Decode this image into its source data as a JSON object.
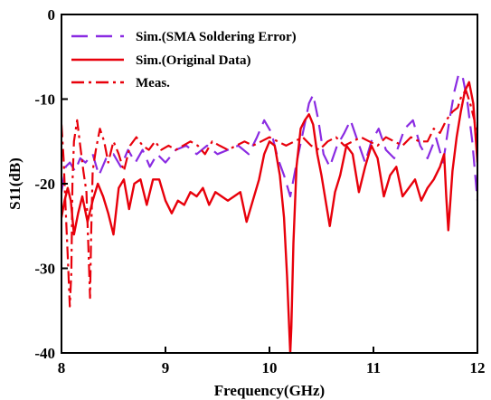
{
  "chart_data": {
    "type": "line",
    "xlabel": "Frequency(GHz)",
    "ylabel": "S11(dB)",
    "xlim": [
      8,
      12
    ],
    "ylim": [
      -40,
      0
    ],
    "xticks": [
      "8",
      "9",
      "10",
      "11",
      "12"
    ],
    "yticks": [
      "0",
      "-10",
      "-20",
      "-30",
      "-40"
    ],
    "xtick_values": [
      8,
      9,
      10,
      11,
      12
    ],
    "ytick_values": [
      0,
      -10,
      -20,
      -30,
      -40
    ],
    "grid": false,
    "legend_position": "top-left",
    "series": [
      {
        "name": "Sim.(SMA Soldering Error)",
        "color": "#8a2be2",
        "style": "dashed",
        "x": [
          8.0,
          8.04,
          8.08,
          8.13,
          8.18,
          8.23,
          8.3,
          8.36,
          8.43,
          8.5,
          8.57,
          8.64,
          8.71,
          8.78,
          8.85,
          8.92,
          9.0,
          9.1,
          9.2,
          9.3,
          9.4,
          9.5,
          9.6,
          9.7,
          9.8,
          9.88,
          9.95,
          10.02,
          10.08,
          10.14,
          10.2,
          10.27,
          10.33,
          10.38,
          10.42,
          10.47,
          10.52,
          10.58,
          10.65,
          10.72,
          10.78,
          10.85,
          10.92,
          10.98,
          11.05,
          11.12,
          11.2,
          11.3,
          11.38,
          11.45,
          11.52,
          11.6,
          11.67,
          11.73,
          11.78,
          11.82,
          11.86,
          11.9,
          11.95,
          12.0
        ],
        "y": [
          -21.0,
          -18.0,
          -17.5,
          -18.5,
          -17.0,
          -17.5,
          -16.5,
          -19.0,
          -17.0,
          -16.5,
          -18.0,
          -16.0,
          -17.5,
          -16.0,
          -18.0,
          -16.5,
          -17.5,
          -16.0,
          -15.5,
          -16.5,
          -15.5,
          -16.5,
          -16.0,
          -15.5,
          -16.5,
          -14.5,
          -12.5,
          -14.0,
          -17.0,
          -19.0,
          -21.5,
          -17.0,
          -13.5,
          -10.5,
          -9.5,
          -12.5,
          -16.5,
          -18.0,
          -15.5,
          -14.0,
          -12.5,
          -15.0,
          -17.5,
          -15.0,
          -13.5,
          -16.0,
          -17.0,
          -13.5,
          -12.5,
          -15.5,
          -17.0,
          -14.5,
          -17.5,
          -12.5,
          -9.0,
          -7.0,
          -7.5,
          -10.0,
          -15.0,
          -22.0
        ]
      },
      {
        "name": "Sim.(Original Data)",
        "color": "#e8000b",
        "style": "solid",
        "x": [
          8.0,
          8.03,
          8.06,
          8.09,
          8.12,
          8.16,
          8.2,
          8.25,
          8.3,
          8.35,
          8.4,
          8.45,
          8.5,
          8.55,
          8.6,
          8.65,
          8.7,
          8.76,
          8.82,
          8.88,
          8.94,
          9.0,
          9.06,
          9.12,
          9.18,
          9.24,
          9.3,
          9.36,
          9.42,
          9.48,
          9.54,
          9.6,
          9.66,
          9.72,
          9.78,
          9.84,
          9.9,
          9.95,
          10.0,
          10.05,
          10.1,
          10.14,
          10.17,
          10.19,
          10.2,
          10.21,
          10.23,
          10.26,
          10.3,
          10.34,
          10.38,
          10.42,
          10.46,
          10.5,
          10.54,
          10.58,
          10.63,
          10.68,
          10.74,
          10.8,
          10.86,
          10.92,
          10.98,
          11.04,
          11.1,
          11.16,
          11.22,
          11.28,
          11.34,
          11.4,
          11.46,
          11.52,
          11.58,
          11.64,
          11.68,
          11.7,
          11.72,
          11.76,
          11.8,
          11.84,
          11.88,
          11.92,
          11.96,
          12.0
        ],
        "y": [
          -24.0,
          -22.0,
          -20.5,
          -22.0,
          -26.0,
          -23.5,
          -21.5,
          -24.5,
          -22.0,
          -20.0,
          -21.5,
          -23.5,
          -26.0,
          -20.5,
          -19.5,
          -23.0,
          -20.0,
          -19.5,
          -22.5,
          -19.5,
          -19.5,
          -22.0,
          -23.5,
          -22.0,
          -22.5,
          -21.0,
          -21.5,
          -20.5,
          -22.5,
          -21.0,
          -21.5,
          -22.0,
          -21.5,
          -21.0,
          -24.5,
          -22.0,
          -19.5,
          -16.5,
          -15.0,
          -15.5,
          -19.0,
          -24.0,
          -31.0,
          -37.0,
          -40.0,
          -37.0,
          -27.0,
          -18.0,
          -13.5,
          -12.5,
          -11.8,
          -13.0,
          -16.5,
          -19.0,
          -22.0,
          -25.0,
          -21.0,
          -19.0,
          -15.5,
          -16.5,
          -21.0,
          -18.0,
          -15.5,
          -17.0,
          -21.5,
          -19.0,
          -18.0,
          -21.5,
          -20.5,
          -19.5,
          -22.0,
          -20.5,
          -19.5,
          -18.0,
          -16.5,
          -21.5,
          -25.5,
          -18.5,
          -14.5,
          -11.5,
          -9.0,
          -8.0,
          -10.5,
          -17.5
        ]
      },
      {
        "name": "Meas.",
        "color": "#e8000b",
        "style": "dashdot",
        "x": [
          8.0,
          8.02,
          8.04,
          8.06,
          8.08,
          8.095,
          8.105,
          8.12,
          8.15,
          8.18,
          8.21,
          8.24,
          8.26,
          8.275,
          8.285,
          8.3,
          8.33,
          8.37,
          8.41,
          8.45,
          8.5,
          8.55,
          8.6,
          8.66,
          8.72,
          8.78,
          8.84,
          8.9,
          8.96,
          9.03,
          9.1,
          9.17,
          9.24,
          9.31,
          9.38,
          9.45,
          9.52,
          9.6,
          9.68,
          9.76,
          9.84,
          9.92,
          10.0,
          10.08,
          10.16,
          10.24,
          10.32,
          10.4,
          10.48,
          10.56,
          10.64,
          10.72,
          10.8,
          10.88,
          10.96,
          11.04,
          11.12,
          11.2,
          11.28,
          11.36,
          11.44,
          11.52,
          11.58,
          11.64,
          11.7,
          11.76,
          11.81,
          11.85,
          11.89,
          11.93,
          11.97,
          12.0
        ],
        "y": [
          -13.0,
          -17.0,
          -23.0,
          -28.5,
          -34.5,
          -30.5,
          -20.0,
          -15.0,
          -12.5,
          -15.5,
          -18.5,
          -21.0,
          -28.0,
          -33.5,
          -26.0,
          -18.5,
          -16.0,
          -13.5,
          -15.0,
          -17.5,
          -15.0,
          -16.5,
          -18.5,
          -15.5,
          -14.5,
          -15.5,
          -16.0,
          -15.0,
          -16.0,
          -15.5,
          -16.0,
          -15.5,
          -15.0,
          -15.5,
          -16.5,
          -15.0,
          -15.5,
          -16.0,
          -15.5,
          -15.0,
          -15.5,
          -15.0,
          -14.5,
          -15.0,
          -15.5,
          -15.0,
          -14.5,
          -15.5,
          -16.0,
          -15.0,
          -14.5,
          -15.5,
          -15.0,
          -14.5,
          -15.0,
          -15.5,
          -14.5,
          -15.0,
          -15.5,
          -14.5,
          -15.0,
          -15.0,
          -13.5,
          -14.0,
          -12.5,
          -11.5,
          -11.0,
          -9.5,
          -9.0,
          -10.5,
          -12.5,
          -15.0
        ]
      }
    ]
  }
}
